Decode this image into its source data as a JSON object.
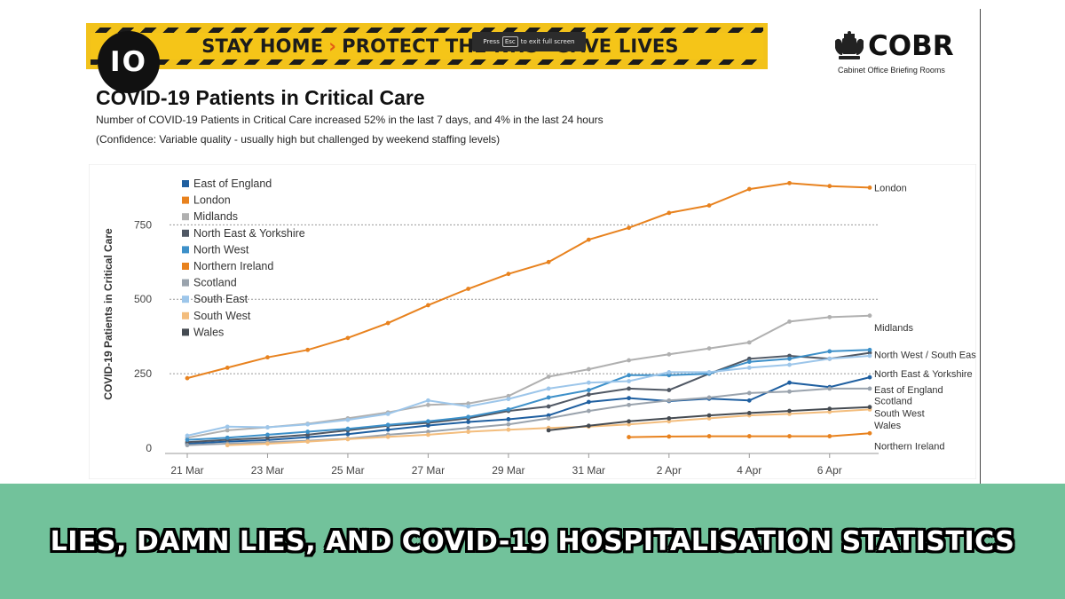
{
  "banner": {
    "part1": "STAY HOME",
    "part2": "PROTECT THE NHS",
    "part3": "SAVE LIVES",
    "chevron": "›"
  },
  "channel_logo": {
    "text": "IO"
  },
  "fullscreen_tip": {
    "before": "Press",
    "key": "Esc",
    "after": "to exit full screen"
  },
  "cobr": {
    "name": "COBR",
    "subtitle": "Cabinet Office Briefing Rooms",
    "crest_icon": "royal-crest-icon"
  },
  "slide": {
    "title": "COVID-19 Patients in Critical Care",
    "subtitle": "Number of COVID-19 Patients in Critical Care increased 52% in the last 7 days, and 4% in the last 24 hours",
    "confidence": "(Confidence: Variable quality - usually high but challenged by weekend staffing levels)"
  },
  "headline": "LIES, DAMN LIES, AND COVID-19 HOSPITALISATION STATISTICS",
  "chart_data": {
    "type": "line",
    "ylabel": "COVID-19 Patients in Critical Care",
    "xlabel": "",
    "ylim": [
      0,
      900
    ],
    "yticks": [
      0,
      250,
      500,
      750
    ],
    "x": [
      "21 Mar",
      "22 Mar",
      "23 Mar",
      "24 Mar",
      "25 Mar",
      "26 Mar",
      "27 Mar",
      "28 Mar",
      "29 Mar",
      "30 Mar",
      "31 Mar",
      "1 Apr",
      "2 Apr",
      "3 Apr",
      "4 Apr",
      "5 Apr",
      "6 Apr",
      "7 Apr"
    ],
    "xticks": [
      "21 Mar",
      "23 Mar",
      "25 Mar",
      "27 Mar",
      "29 Mar",
      "31 Mar",
      "2 Apr",
      "4 Apr",
      "6 Apr"
    ],
    "legend_position": "top-left",
    "series": [
      {
        "name": "East of England",
        "color": "#1f5fa0",
        "values": [
          15,
          22,
          27,
          37,
          47,
          62,
          76,
          88,
          97,
          110,
          155,
          168,
          158,
          166,
          160,
          220,
          205,
          238
        ]
      },
      {
        "name": "London",
        "color": "#e8821e",
        "values": [
          235,
          270,
          305,
          330,
          370,
          420,
          480,
          535,
          585,
          625,
          700,
          740,
          790,
          815,
          870,
          890,
          880,
          875
        ]
      },
      {
        "name": "Midlands",
        "color": "#b0b0b0",
        "values": [
          35,
          60,
          70,
          82,
          100,
          120,
          145,
          150,
          175,
          240,
          265,
          295,
          315,
          335,
          355,
          425,
          440,
          445
        ]
      },
      {
        "name": "North East & Yorkshire",
        "color": "#505864",
        "values": [
          20,
          28,
          35,
          45,
          60,
          75,
          85,
          100,
          125,
          140,
          180,
          200,
          195,
          250,
          300,
          310,
          300,
          320
        ]
      },
      {
        "name": "North West",
        "color": "#3d90c9",
        "values": [
          28,
          35,
          45,
          55,
          65,
          78,
          90,
          105,
          130,
          170,
          195,
          245,
          245,
          250,
          290,
          300,
          325,
          330
        ]
      },
      {
        "name": "Northern Ireland",
        "color": "#e8821e",
        "values": [
          null,
          null,
          null,
          null,
          null,
          null,
          null,
          null,
          null,
          null,
          null,
          37,
          39,
          40,
          40,
          40,
          40,
          50
        ]
      },
      {
        "name": "Scotland",
        "color": "#9aa3ad",
        "values": [
          10,
          15,
          20,
          25,
          32,
          45,
          55,
          68,
          80,
          100,
          125,
          145,
          160,
          170,
          185,
          190,
          200,
          200
        ]
      },
      {
        "name": "South East",
        "color": "#9dc6ea",
        "values": [
          42,
          72,
          70,
          80,
          95,
          115,
          160,
          140,
          165,
          200,
          220,
          225,
          255,
          255,
          270,
          280,
          300,
          310
        ]
      },
      {
        "name": "South West",
        "color": "#f3bd7d",
        "values": [
          null,
          10,
          15,
          22,
          30,
          38,
          45,
          55,
          62,
          68,
          72,
          80,
          90,
          100,
          110,
          115,
          122,
          130
        ]
      },
      {
        "name": "Wales",
        "color": "#454b52",
        "values": [
          null,
          null,
          null,
          null,
          null,
          null,
          null,
          null,
          null,
          60,
          75,
          90,
          100,
          110,
          118,
          125,
          132,
          138
        ]
      }
    ],
    "end_labels": [
      {
        "text": "London",
        "y": 875
      },
      {
        "text": "Midlands",
        "y": 405
      },
      {
        "text": "North West / South East",
        "y": 315
      },
      {
        "text": "North East & Yorkshire",
        "y": 250
      },
      {
        "text": "East of England",
        "y": 197
      },
      {
        "text": "Scotland",
        "y": 160
      },
      {
        "text": "South West",
        "y": 118
      },
      {
        "text": "Wales",
        "y": 78
      },
      {
        "text": "Northern Ireland",
        "y": 8
      }
    ]
  }
}
